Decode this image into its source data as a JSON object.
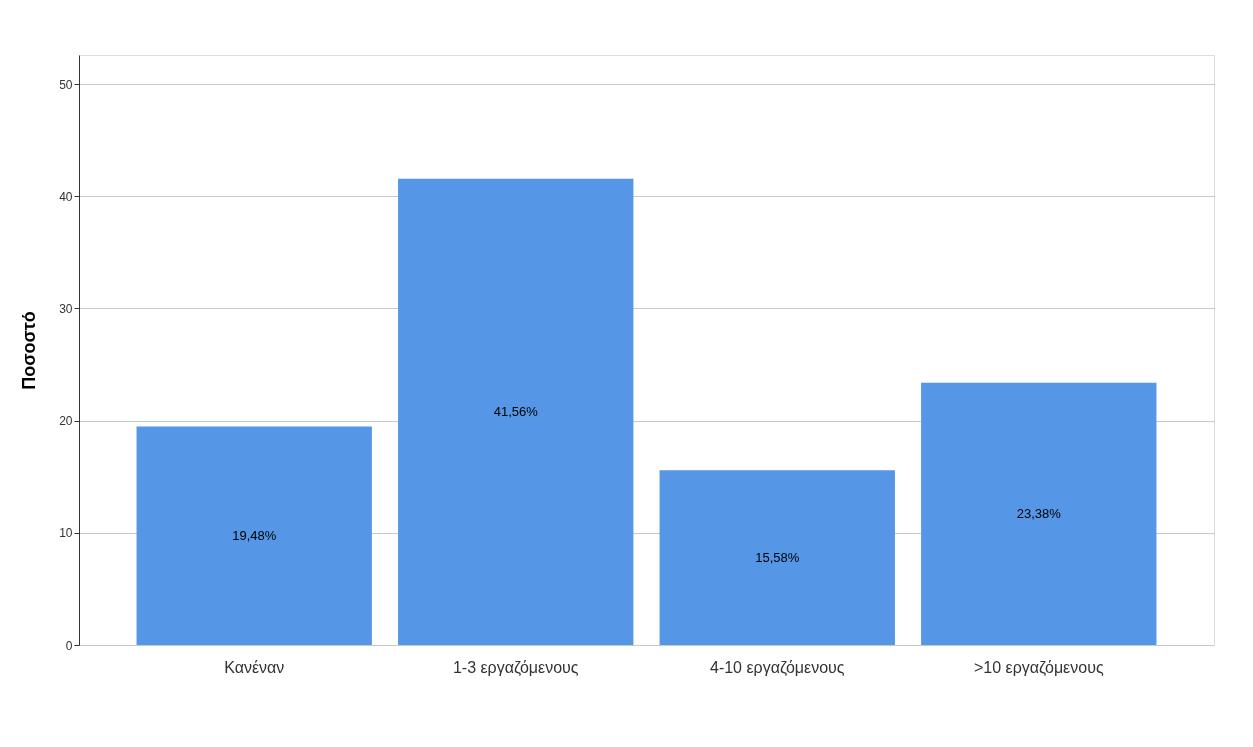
{
  "chart_data": {
    "type": "bar",
    "ylabel": "Ποσοστό",
    "categories": [
      "Κανέναν",
      "1-3 εργαζόμενους",
      "4-10 εργαζόμενους",
      ">10 εργαζόμενους"
    ],
    "values": [
      19.48,
      41.56,
      15.58,
      23.38
    ],
    "value_labels": [
      "19,48%",
      "41,56%",
      "15,58%",
      "23,38%"
    ],
    "color": "#5596e6",
    "ylim": [
      0,
      52.6
    ],
    "yticks": [
      0,
      10,
      20,
      30,
      40,
      50
    ],
    "grid": "y"
  }
}
